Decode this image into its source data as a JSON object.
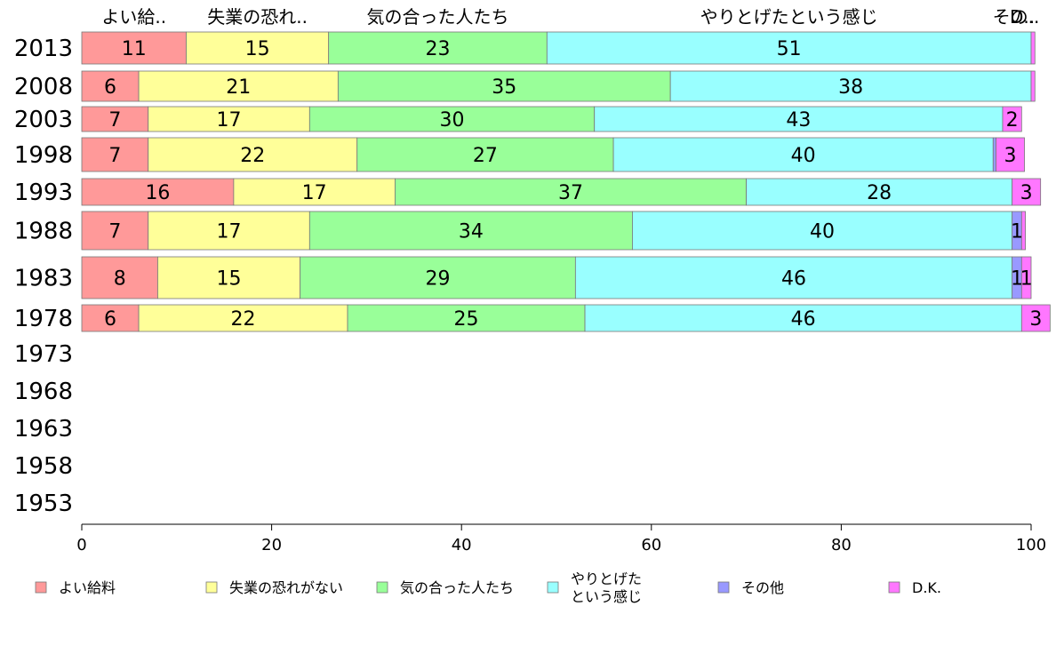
{
  "chart_data": {
    "type": "bar",
    "orientation": "horizontal",
    "stacked": true,
    "xlim": [
      0,
      100
    ],
    "xticks": [
      0,
      20,
      40,
      60,
      80,
      100
    ],
    "categories": [
      "2013",
      "2008",
      "2003",
      "1998",
      "1993",
      "1988",
      "1983",
      "1978",
      "1973",
      "1968",
      "1963",
      "1958",
      "1953"
    ],
    "column_headers": [
      "よい給..",
      "失業の恐れ..",
      "気の合った人たち",
      "やりとげたという感じ",
      "その..",
      "D.."
    ],
    "series": [
      {
        "name": "よい給料",
        "color": "#ff9999",
        "values": [
          11,
          6,
          7,
          7,
          16,
          7,
          8,
          6,
          null,
          null,
          null,
          null,
          null
        ]
      },
      {
        "name": "失業の恐れがない",
        "color": "#ffff99",
        "values": [
          15,
          21,
          17,
          22,
          17,
          17,
          15,
          22,
          null,
          null,
          null,
          null,
          null
        ]
      },
      {
        "name": "気の合った人たち",
        "color": "#99ff99",
        "values": [
          23,
          35,
          30,
          27,
          37,
          34,
          29,
          25,
          null,
          null,
          null,
          null,
          null
        ]
      },
      {
        "name": "やりとげたという感じ",
        "color": "#99ffff",
        "values": [
          51,
          38,
          43,
          40,
          28,
          40,
          46,
          46,
          null,
          null,
          null,
          null,
          null
        ]
      },
      {
        "name": "その他",
        "color": "#9999ff",
        "values": [
          0,
          0,
          0,
          0.3,
          0,
          1,
          1,
          0,
          null,
          null,
          null,
          null,
          null
        ]
      },
      {
        "name": "D.K.",
        "color": "#ff77ff",
        "values": [
          0.4,
          0.4,
          2,
          3,
          3,
          0.4,
          1,
          3,
          null,
          null,
          null,
          null,
          null
        ]
      }
    ],
    "legend_labels": [
      "よい給料",
      "失業の恐れがない",
      "気の合った人たち",
      "やりとげた\nという感じ",
      "その他",
      "D.K."
    ],
    "legend_position": "bottom",
    "grid": false
  }
}
